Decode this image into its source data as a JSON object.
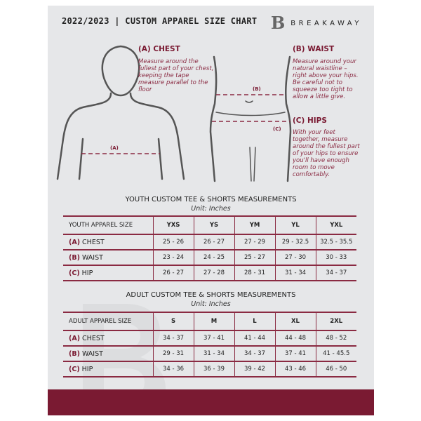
{
  "header": {
    "title": "2022/2023  |  CUSTOM APPAREL SIZE CHART",
    "brand": "BREAKAWAY",
    "logo_letter": "B"
  },
  "measures": {
    "chest": {
      "title": "(A) CHEST",
      "text": "Measure around the fullest part of your chest, keeping the tape measure parallel to the floor",
      "marker": "(A)"
    },
    "waist": {
      "title": "(B) WAIST",
      "text": "Measure around your natural waistline – right above your hips. Be careful not to squeeze too tight to allow a little give.",
      "marker": "(B)"
    },
    "hips": {
      "title": "(C) HIPS",
      "text": "With your feet together, measure around the fullest part of your hips to ensure you'll have enough room to move comfortably.",
      "marker": "(C)"
    }
  },
  "youth": {
    "title": "YOUTH CUSTOM TEE & SHORTS MEASUREMENTS",
    "unit": "Unit: Inches",
    "header": "YOUTH APPAREL SIZE",
    "sizes": [
      "YXS",
      "YS",
      "YM",
      "YL",
      "YXL"
    ],
    "rows": [
      {
        "letter": "(A)",
        "label": "CHEST",
        "values": [
          "25 - 26",
          "26 - 27",
          "27 - 29",
          "29 - 32.5",
          "32.5 - 35.5"
        ]
      },
      {
        "letter": "(B)",
        "label": "WAIST",
        "values": [
          "23 - 24",
          "24 - 25",
          "25 - 27",
          "27 - 30",
          "30 - 33"
        ]
      },
      {
        "letter": "(C)",
        "label": "HIP",
        "values": [
          "26 - 27",
          "27 - 28",
          "28 - 31",
          "31 - 34",
          "34 - 37"
        ]
      }
    ]
  },
  "adult": {
    "title": "ADULT CUSTOM TEE & SHORTS MEASUREMENTS",
    "unit": "Unit: Inches",
    "header": "ADULT APPAREL SIZE",
    "sizes": [
      "S",
      "M",
      "L",
      "XL",
      "2XL"
    ],
    "rows": [
      {
        "letter": "(A)",
        "label": "CHEST",
        "values": [
          "34 - 37",
          "37 - 41",
          "41 - 44",
          "44 - 48",
          "48 - 52"
        ]
      },
      {
        "letter": "(B)",
        "label": "WAIST",
        "values": [
          "29 - 31",
          "31 - 34",
          "34 - 37",
          "37 - 41",
          "41 - 45.5"
        ]
      },
      {
        "letter": "(C)",
        "label": "HIP",
        "values": [
          "34 - 36",
          "36 - 39",
          "39 - 42",
          "43 - 46",
          "46 - 50"
        ]
      }
    ]
  },
  "colors": {
    "accent": "#7a1a32",
    "panel": "#e6e7e9"
  }
}
